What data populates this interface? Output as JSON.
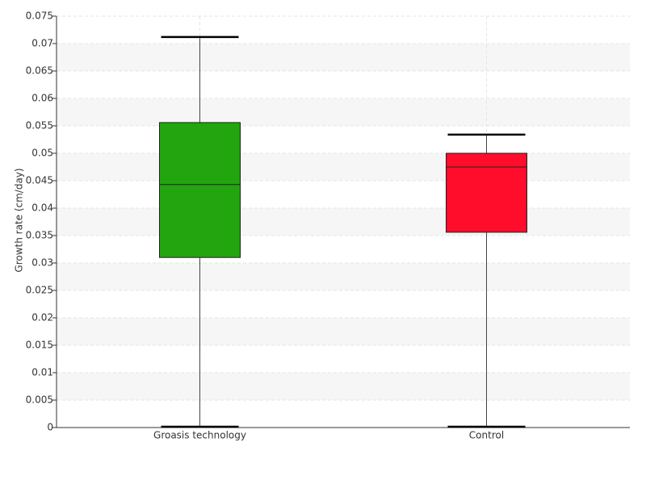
{
  "chart_data": {
    "type": "box",
    "ylabel": "Growth rate (cm/day)",
    "categories": [
      "Groasis technology",
      "Control"
    ],
    "boxes": [
      {
        "min": 0,
        "q1": 0.031,
        "median": 0.0443,
        "q3": 0.0556,
        "max": 0.0712,
        "color": "#22a50f"
      },
      {
        "min": 0,
        "q1": 0.0356,
        "median": 0.0475,
        "q3": 0.05,
        "max": 0.0534,
        "color": "#ff0d2b"
      }
    ],
    "ylim": [
      0,
      0.075
    ],
    "yticks": [
      0,
      0.005,
      0.01,
      0.015,
      0.02,
      0.025,
      0.03,
      0.035,
      0.04,
      0.045,
      0.05,
      0.055,
      0.06,
      0.065,
      0.07,
      0.075
    ],
    "grid": true
  }
}
